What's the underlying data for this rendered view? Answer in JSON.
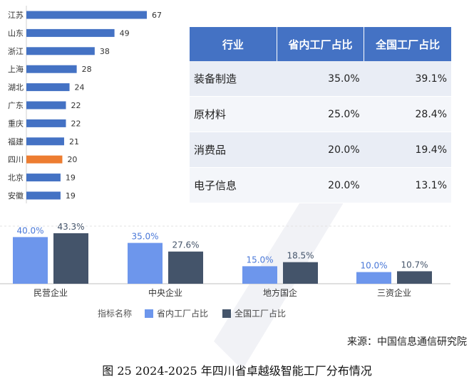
{
  "chart_data": [
    {
      "type": "bar",
      "orientation": "horizontal",
      "categories": [
        "江苏",
        "山东",
        "浙江",
        "上海",
        "湖北",
        "广东",
        "重庆",
        "福建",
        "四川",
        "北京",
        "安徽"
      ],
      "values": [
        67,
        49,
        38,
        28,
        24,
        22,
        22,
        21,
        20,
        19,
        19
      ],
      "highlight": "四川",
      "colors": {
        "default": "#4472c4",
        "highlight": "#ed7d31"
      }
    },
    {
      "type": "table",
      "columns": [
        "行业",
        "省内工厂占比",
        "全国工厂占比"
      ],
      "rows": [
        [
          "装备制造",
          "35.0%",
          "39.1%"
        ],
        [
          "原材料",
          "25.0%",
          "28.4%"
        ],
        [
          "消费品",
          "20.0%",
          "19.4%"
        ],
        [
          "电子信息",
          "20.0%",
          "13.1%"
        ]
      ],
      "header_color": "#4472c4"
    },
    {
      "type": "bar",
      "categories": [
        "民营企业",
        "中央企业",
        "地方国企",
        "三资企业"
      ],
      "series": [
        {
          "name": "省内工厂占比",
          "values": [
            40.0,
            35.0,
            15.0,
            10.0
          ],
          "labels": [
            "40.0%",
            "35.0%",
            "15.0%",
            "10.0%"
          ],
          "color": "#6d96ec"
        },
        {
          "name": "全国工厂占比",
          "values": [
            43.3,
            27.6,
            18.5,
            10.7
          ],
          "labels": [
            "43.3%",
            "27.6%",
            "18.5%",
            "10.7%"
          ],
          "color": "#44546a"
        }
      ],
      "legend_title": "指标名称",
      "legend_position": "bottom",
      "ylim": [
        0,
        50
      ]
    }
  ],
  "source": "来源：中国信息通信研究院",
  "caption": "图  25 2024-2025 年四川省卓越级智能工厂分布情况"
}
